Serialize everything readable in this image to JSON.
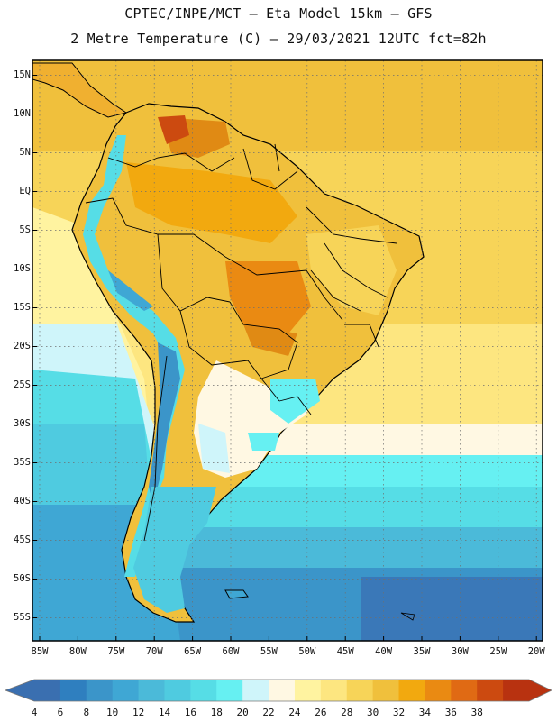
{
  "title_line1": "CPTEC/INPE/MCT –  Eta Model 15km – GFS",
  "title_line2": "2 Metre Temperature (C) – 29/03/2021 12UTC fct=82h",
  "lat_labels": [
    "15N",
    "10N",
    "5N",
    "EQ",
    "5S",
    "10S",
    "15S",
    "20S",
    "25S",
    "30S",
    "35S",
    "40S",
    "45S",
    "50S",
    "55S"
  ],
  "lon_labels": [
    "85W",
    "80W",
    "75W",
    "70W",
    "65W",
    "60W",
    "55W",
    "50W",
    "45W",
    "40W",
    "35W",
    "30W",
    "25W",
    "20W"
  ],
  "legend": {
    "levels": [
      "4",
      "6",
      "8",
      "10",
      "12",
      "14",
      "16",
      "18",
      "20",
      "22",
      "24",
      "26",
      "28",
      "30",
      "32",
      "34",
      "36",
      "38"
    ],
    "colors": [
      "#3a6fb0",
      "#2f7fbf",
      "#3b95c9",
      "#3fa7d4",
      "#4bbad9",
      "#4fcbe0",
      "#56dde6",
      "#66f0f2",
      "#cff5fa",
      "#fff8e3",
      "#fff3a0",
      "#fde680",
      "#f7d458",
      "#f0c03c",
      "#f2a90f",
      "#ea8a12",
      "#e06a14",
      "#cc4a10",
      "#b83210"
    ],
    "low_color": "#3a6fb0",
    "high_color": "#b83210"
  },
  "map_colors": {
    "ocean_south": "#3a78b8",
    "ocean_mid": "#4fc0dc",
    "ocean_cold": "#58d8e8",
    "ocean_warm": "#f7d458",
    "ocean_warm2": "#fde680",
    "land_hot": "#f0b030",
    "land_hotter": "#e08a14",
    "andes": "#56dde6",
    "andes_cold": "#3fa7d4",
    "patagonia": "#4fcbe0",
    "borders": "#000000"
  }
}
